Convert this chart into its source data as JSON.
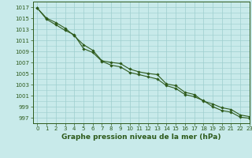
{
  "x": [
    0,
    1,
    2,
    3,
    4,
    5,
    6,
    7,
    8,
    9,
    10,
    11,
    12,
    13,
    14,
    15,
    16,
    17,
    18,
    19,
    20,
    21,
    22,
    23
  ],
  "line1": [
    1016.8,
    1015.0,
    1014.2,
    1013.2,
    1011.8,
    1010.2,
    1009.2,
    1007.3,
    1007.0,
    1006.8,
    1005.8,
    1005.3,
    1005.0,
    1004.8,
    1003.1,
    1002.8,
    1001.6,
    1001.2,
    1000.0,
    999.5,
    998.8,
    998.5,
    997.5,
    997.2
  ],
  "line2": [
    1016.8,
    1014.8,
    1013.8,
    1012.8,
    1012.0,
    1009.5,
    1008.8,
    1007.2,
    1006.5,
    1006.2,
    1005.2,
    1004.8,
    1004.4,
    1004.0,
    1002.8,
    1002.3,
    1001.2,
    1000.8,
    1000.1,
    999.0,
    998.3,
    998.0,
    997.1,
    996.9
  ],
  "ylim": [
    996,
    1018
  ],
  "xlim": [
    -0.5,
    23
  ],
  "yticks": [
    997,
    999,
    1001,
    1003,
    1005,
    1007,
    1009,
    1011,
    1013,
    1015,
    1017
  ],
  "xticks": [
    0,
    1,
    2,
    3,
    4,
    5,
    6,
    7,
    8,
    9,
    10,
    11,
    12,
    13,
    14,
    15,
    16,
    17,
    18,
    19,
    20,
    21,
    22,
    23
  ],
  "xlabel": "Graphe pression niveau de la mer (hPa)",
  "line_color": "#2d5a1b",
  "bg_color": "#c8eaea",
  "grid_color": "#9ecece",
  "marker": "D",
  "marker_size": 1.8,
  "line_width": 0.8,
  "xlabel_fontsize": 6.5,
  "tick_fontsize": 5.0
}
